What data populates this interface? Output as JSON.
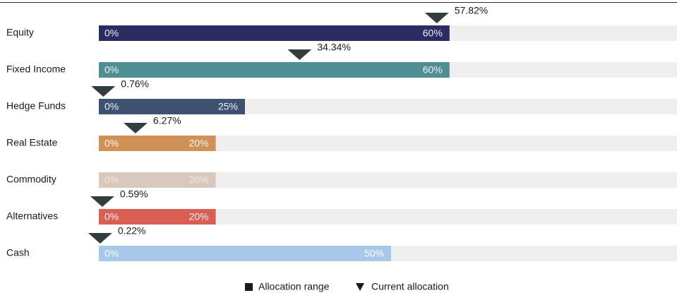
{
  "chart_data": {
    "type": "range-bar",
    "categories": [
      "Equity",
      "Fixed Income",
      "Hedge Funds",
      "Real Estate",
      "Commodity",
      "Alternatives",
      "Cash"
    ],
    "xlim": [
      0,
      100
    ],
    "series": [
      {
        "name": "Allocation range",
        "low": [
          0,
          0,
          0,
          0,
          0,
          0,
          0
        ],
        "high": [
          60,
          60,
          25,
          20,
          20,
          20,
          50
        ],
        "low_labels": [
          "0%",
          "0%",
          "0%",
          "0%",
          "0%",
          "0%",
          "0%"
        ],
        "high_labels": [
          "60%",
          "60%",
          "25%",
          "20%",
          "20%",
          "20%",
          "50%"
        ],
        "colors": [
          "#2b2d62",
          "#4f8e93",
          "#3e5170",
          "#cf9155",
          "#d9c8bc",
          "#d95f55",
          "#a8c8ea"
        ],
        "color": "#1a1a1a"
      },
      {
        "name": "Current allocation",
        "values": [
          57.82,
          34.34,
          0.76,
          6.27,
          null,
          0.59,
          0.22
        ],
        "value_labels": [
          "57.82%",
          "34.34%",
          "0.76%",
          "6.27%",
          null,
          "0.59%",
          "0.22%"
        ],
        "color": "#333d40"
      }
    ],
    "track_color": "#efefef"
  }
}
